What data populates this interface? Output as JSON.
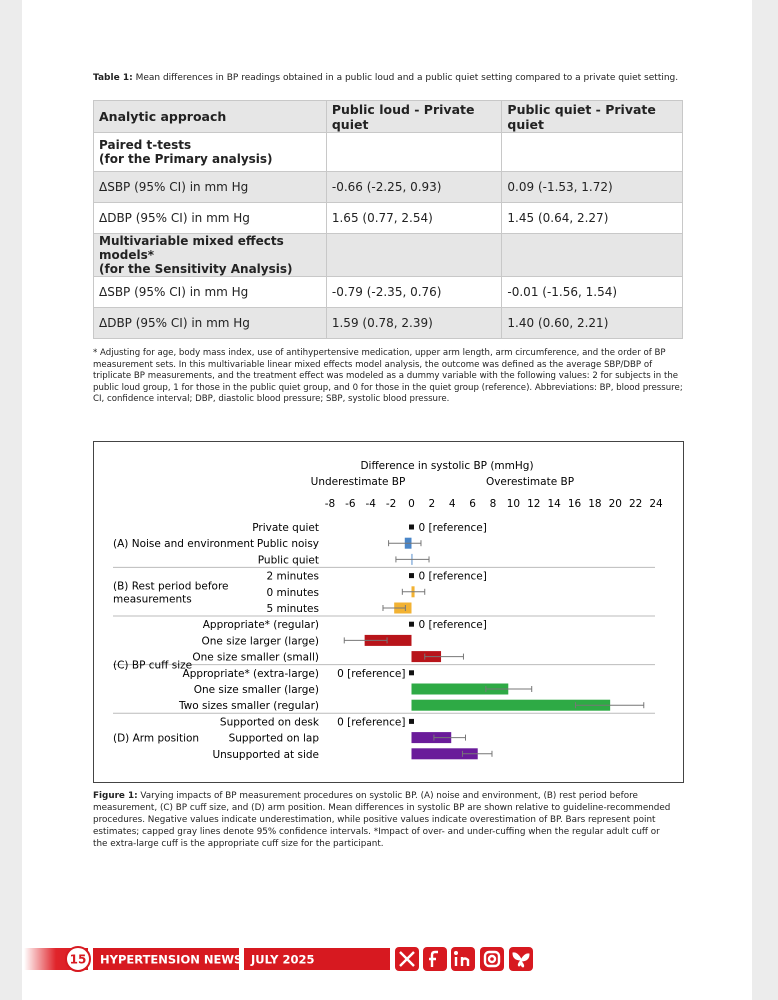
{
  "table_caption": {
    "label": "Table 1:",
    "text": "Mean differences in BP readings obtained in a public loud and a public quiet setting compared to a private quiet setting."
  },
  "table": {
    "header": [
      "Analytic approach",
      "Public loud - Private quiet",
      "Public quiet - Private quiet"
    ],
    "rows": [
      {
        "section": [
          "Paired t-tests",
          "(for the Primary analysis)"
        ]
      },
      {
        "cells": [
          "ΔSBP (95% CI) in mm Hg",
          "-0.66 (-2.25, 0.93)",
          "0.09 (-1.53, 1.72)"
        ]
      },
      {
        "cells": [
          "ΔDBP (95% CI) in mm Hg",
          "1.65 (0.77, 2.54)",
          "1.45 (0.64, 2.27)"
        ]
      },
      {
        "section": [
          "Multivariable mixed effects models*",
          "(for the Sensitivity Analysis)"
        ]
      },
      {
        "cells": [
          "ΔSBP (95% CI) in mm Hg",
          "-0.79 (-2.35, 0.76)",
          "-0.01 (-1.56, 1.54)"
        ]
      },
      {
        "cells": [
          "ΔDBP (95% CI) in mm Hg",
          "1.59 (0.78, 2.39)",
          "1.40 (0.60, 2.21)"
        ]
      }
    ]
  },
  "footnote": "* Adjusting for age, body mass index, use of antihypertensive medication, upper arm length, arm circumference, and the order of BP measurement sets. In this multivariable linear mixed effects model analysis, the outcome was defined as the average SBP/DBP of triplicate BP measurements, and the treatment effect was modeled as a dummy variable with the following values: 2 for subjects in the public loud group, 1 for those in the public quiet group, and 0 for those in the quiet group (reference). Abbreviations: BP, blood pressure; CI, confidence interval; DBP, diastolic blood pressure; SBP, systolic blood pressure.",
  "figure": {
    "type": "bar",
    "title": "Difference in systolic BP (mmHg)",
    "left_label": "Underestimate BP",
    "right_label": "Overestimate BP",
    "xlim": [
      -8,
      24
    ],
    "xticks": [
      -8,
      -6,
      -4,
      -2,
      0,
      2,
      4,
      6,
      8,
      10,
      12,
      14,
      16,
      18,
      20,
      22,
      24
    ],
    "groups": [
      {
        "label": [
          "(A) Noise and environment"
        ],
        "color": "#4a86c8",
        "rows": [
          {
            "label": "Private quiet",
            "value": 0,
            "value_label": "0 [reference]"
          },
          {
            "label": "Public noisy",
            "value": -0.66,
            "lower": -2.25,
            "upper": 0.93
          },
          {
            "label": "Public quiet",
            "value": 0.09,
            "lower": -1.53,
            "upper": 1.72
          }
        ]
      },
      {
        "label": [
          "(B) Rest period before",
          "measurements"
        ],
        "color": "#f2b233",
        "rows": [
          {
            "label": "2 minutes",
            "value": 0,
            "value_label": "0 [reference]"
          },
          {
            "label": "0 minutes",
            "value": 0.3,
            "lower": -0.9,
            "upper": 1.3
          },
          {
            "label": "5 minutes",
            "value": -1.7,
            "lower": -2.8,
            "upper": -0.6
          }
        ]
      },
      {
        "label": [
          "(C) BP cuff size"
        ],
        "color": "#b8141a",
        "rows": [
          {
            "label": "Appropriate* (regular)",
            "value": 0,
            "value_label": "0 [reference]"
          },
          {
            "label": "One size larger (large)",
            "value": -4.6,
            "lower": -6.6,
            "upper": -2.4
          },
          {
            "label": "One size smaller (small)",
            "value": 2.9,
            "lower": 1.3,
            "upper": 5.1
          },
          {
            "label": "Appropriate* (extra-large)",
            "value": 0,
            "value_label": "0 [reference]"
          },
          {
            "label": "One size smaller (large)",
            "value": 9.5,
            "lower": 7.3,
            "upper": 11.8,
            "color": "#2eaa45"
          },
          {
            "label": "Two sizes smaller (regular)",
            "value": 19.5,
            "lower": 16.1,
            "upper": 22.8,
            "color": "#2eaa45"
          }
        ]
      },
      {
        "label": [
          "(D) Arm position"
        ],
        "color": "#6a1b9a",
        "rows": [
          {
            "label": "Supported on desk",
            "value": 0,
            "value_label": "0 [reference]"
          },
          {
            "label": "Supported on lap",
            "value": 3.9,
            "lower": 2.2,
            "upper": 5.3
          },
          {
            "label": "Unsupported at side",
            "value": 6.5,
            "lower": 5.0,
            "upper": 7.9
          }
        ]
      }
    ],
    "caption": {
      "label": "Figure 1:",
      "text": "Varying impacts of BP measurement procedures on systolic BP. (A) noise and environment, (B) rest period before measurement, (C) BP cuff size, and (D) arm position. Mean differences in systolic BP are shown relative to guideline-recommended procedures. Negative values indicate underestimation, while positive values indicate overestimation of BP. Bars represent point estimates; capped gray lines denote 95% confidence intervals. *Impact of over- and under-cuffing when the regular adult cuff or the extra-large cuff is the appropriate cuff size for the participant."
    }
  },
  "footer": {
    "page": "15",
    "publication": "HYPERTENSION NEWS",
    "issue": "JULY 2025"
  }
}
